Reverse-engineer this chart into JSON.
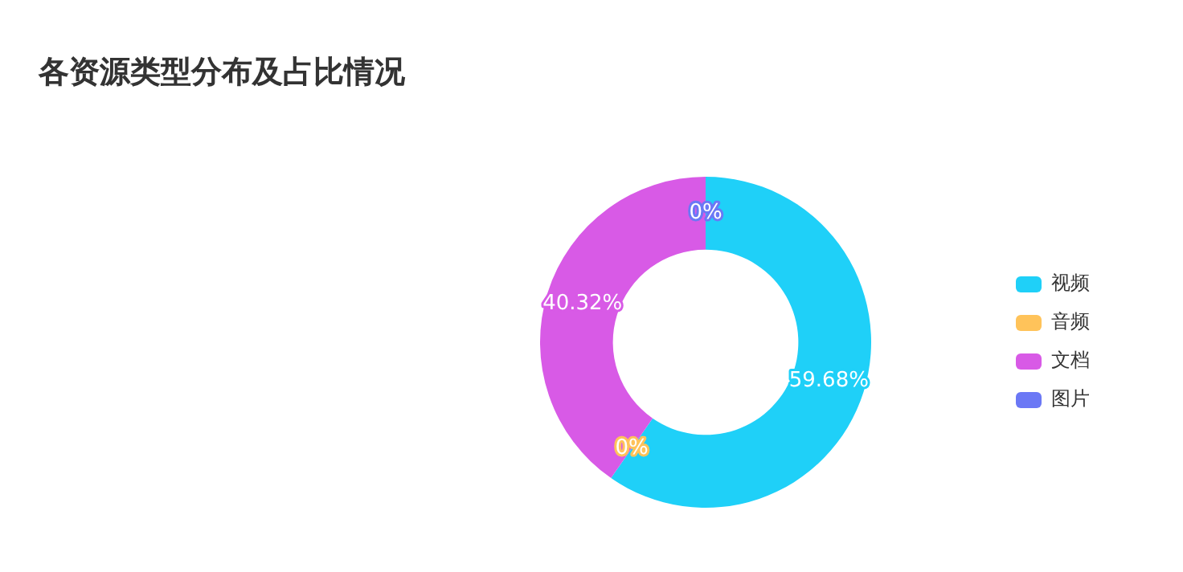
{
  "chart_data": {
    "type": "donut",
    "title": "各资源类型分布及占比情况",
    "categories": [
      "视频",
      "音频",
      "文档",
      "图片"
    ],
    "values": [
      59.68,
      0,
      40.32,
      0
    ],
    "colors": [
      "#1fd0f8",
      "#ffc35a",
      "#d85ae6",
      "#6b78f5"
    ],
    "value_labels": [
      "59.68%",
      "0%",
      "40.32%",
      "0%"
    ],
    "legend": "right"
  }
}
